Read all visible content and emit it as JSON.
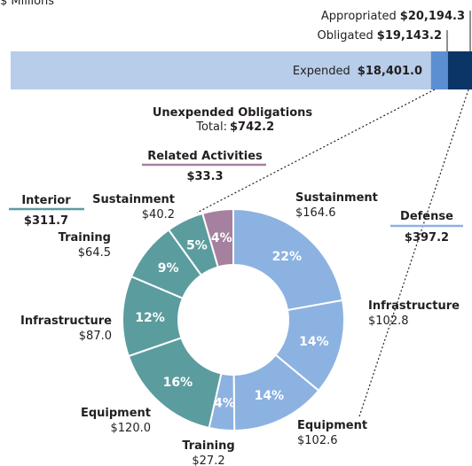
{
  "chart_data": [
    {
      "type": "bar",
      "unit": "$ Millions",
      "categories": [
        "Appropriated",
        "Obligated",
        "Expended"
      ],
      "values": [
        20194.3,
        19143.2,
        18401.0
      ],
      "value_labels": [
        "$20,194.3",
        "$19,143.2",
        "$18,401.0"
      ],
      "colors": [
        "#0b3566",
        "#5b8fd1",
        "#b7cde9"
      ],
      "xlim": [
        0,
        20194.3
      ]
    },
    {
      "type": "pie",
      "title": "Unexpended Obligations",
      "subtitle": "Total:",
      "total": 742.2,
      "total_label": "$742.2",
      "categories": [
        "Sustainment",
        "Infrastructure",
        "Equipment",
        "Training",
        "Equipment",
        "Infrastructure",
        "Training",
        "Sustainment",
        "Related Activities"
      ],
      "values": [
        164.6,
        102.8,
        102.6,
        27.2,
        120.0,
        87.0,
        64.5,
        40.2,
        33.3
      ],
      "value_labels": [
        "$164.6",
        "$102.8",
        "$102.6",
        "$27.2",
        "$120.0",
        "$87.0",
        "$64.5",
        "$40.2",
        "$33.3"
      ],
      "percents": [
        22,
        14,
        14,
        4,
        16,
        12,
        9,
        5,
        4
      ],
      "percent_labels": [
        "22%",
        "14%",
        "14%",
        "4%",
        "16%",
        "12%",
        "9%",
        "5%",
        "4%"
      ],
      "colors": [
        "#8cb2e1",
        "#8cb2e1",
        "#8cb2e1",
        "#8cb2e1",
        "#5b9c9f",
        "#5b9c9f",
        "#5b9c9f",
        "#5b9c9f",
        "#a5819f"
      ],
      "groups": [
        {
          "name": "Defense",
          "total": 397.2,
          "total_label": "$397.2",
          "color": "#8cb2e1"
        },
        {
          "name": "Interior",
          "total": 311.7,
          "total_label": "$311.7",
          "color": "#5b9c9f"
        }
      ]
    }
  ]
}
